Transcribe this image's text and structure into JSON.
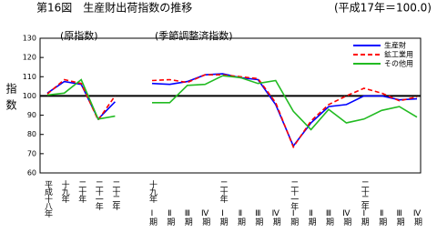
{
  "chart_data": {
    "type": "line",
    "title": "第16図　生産財出荷指数の推移",
    "subtitle": "(平成17年＝100.0)",
    "ylabel": "指数",
    "annotations": [
      "(原指数)",
      "(季節調整済指数)"
    ],
    "categories": [
      "平成十八年",
      "十九年",
      "二十年",
      "二十一年",
      "二十二年",
      "Ⅰ期",
      "Ⅱ期",
      "Ⅲ期",
      "Ⅳ期",
      "Ⅰ期",
      "Ⅱ期",
      "Ⅲ期",
      "Ⅳ期",
      "Ⅰ期",
      "Ⅱ期",
      "Ⅲ期",
      "Ⅳ期",
      "Ⅰ期",
      "Ⅱ期",
      "Ⅲ期",
      "Ⅳ期"
    ],
    "quarter_years": [
      "十九年",
      null,
      null,
      null,
      "二十年",
      null,
      null,
      null,
      "二十一年",
      null,
      null,
      null,
      "二十二年",
      null,
      null,
      null
    ],
    "series": [
      {
        "name": "生産財",
        "color": "#0000ff",
        "dash": false,
        "values": [
          101.5,
          107.5,
          106,
          88,
          97,
          106.5,
          106,
          107.5,
          111,
          111.5,
          109.5,
          108.5,
          95.5,
          74,
          86,
          94.5,
          95.5,
          100,
          100,
          98,
          98.5
        ]
      },
      {
        "name": "鉱工業用",
        "color": "#ff0000",
        "dash": true,
        "values": [
          101,
          108.5,
          106.5,
          87.5,
          100,
          108,
          108.5,
          107,
          111,
          111,
          110,
          109,
          96.5,
          73.5,
          87,
          95.5,
          100,
          104,
          101.5,
          97.5,
          99.5
        ]
      },
      {
        "name": "その他用",
        "color": "#22bb22",
        "dash": false,
        "values": [
          100.5,
          101.5,
          108.5,
          88,
          89.5,
          96.5,
          96.5,
          105.5,
          106,
          110.5,
          109.5,
          106.5,
          108,
          92,
          82.5,
          93,
          86,
          88,
          92.5,
          94.5,
          89
        ]
      }
    ],
    "reference_line": 100,
    "ylim": [
      60,
      130
    ],
    "yticks": [
      60,
      70,
      80,
      90,
      100,
      110,
      120,
      130
    ],
    "legend": "upper right"
  }
}
